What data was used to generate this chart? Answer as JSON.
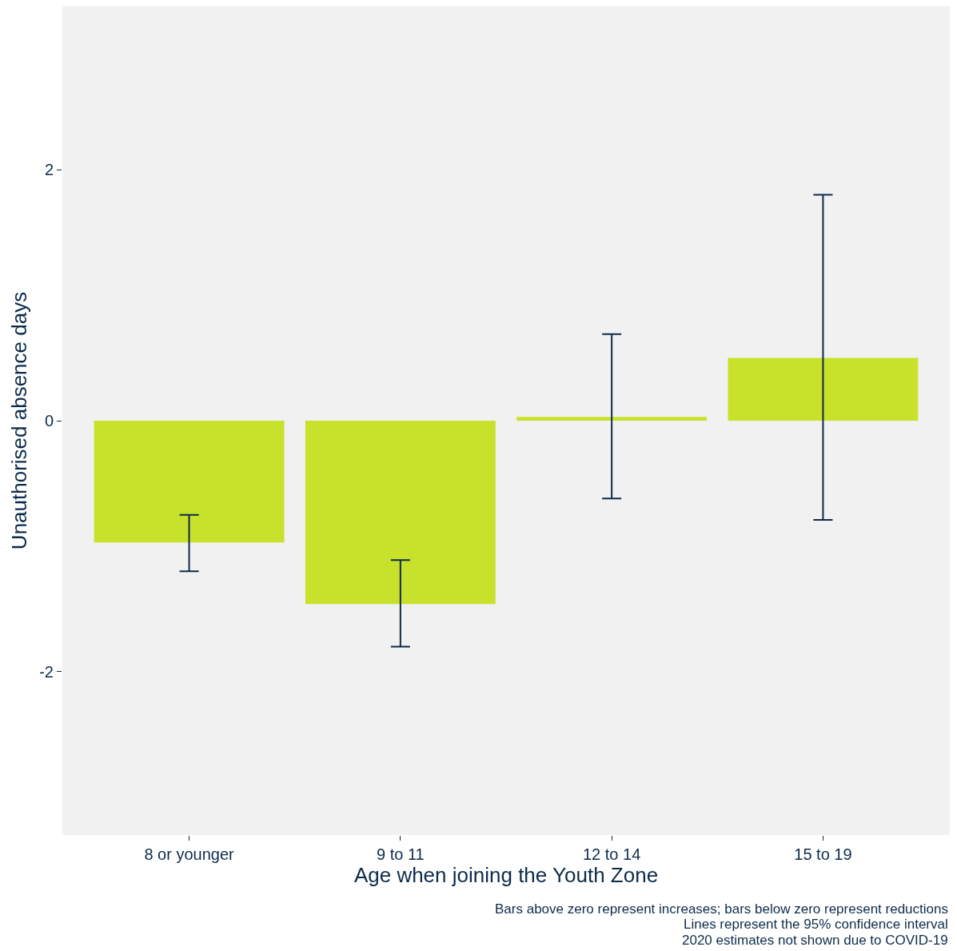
{
  "chart_data": {
    "type": "bar",
    "xlabel": "Age when joining the Youth Zone",
    "ylabel": "Unauthorised absence days",
    "categories": [
      "8 or younger",
      "9 to 11",
      "12 to 14",
      "15 to 19"
    ],
    "values": [
      -0.97,
      -1.46,
      0.03,
      0.5
    ],
    "errors": [
      [
        -1.2,
        -0.75
      ],
      [
        -1.8,
        -1.11
      ],
      [
        -0.62,
        0.69
      ],
      [
        -0.79,
        1.8
      ]
    ],
    "color": "#c8e12a",
    "ylim": [
      -3.3,
      3.3
    ],
    "yticks": [
      -2,
      0,
      2
    ],
    "grid": false,
    "annotations": [
      "Bars above zero represent increases; bars below zero represent reductions",
      "Lines represent the 95% confidence interval",
      "2020 estimates not shown due to COVID-19"
    ]
  }
}
